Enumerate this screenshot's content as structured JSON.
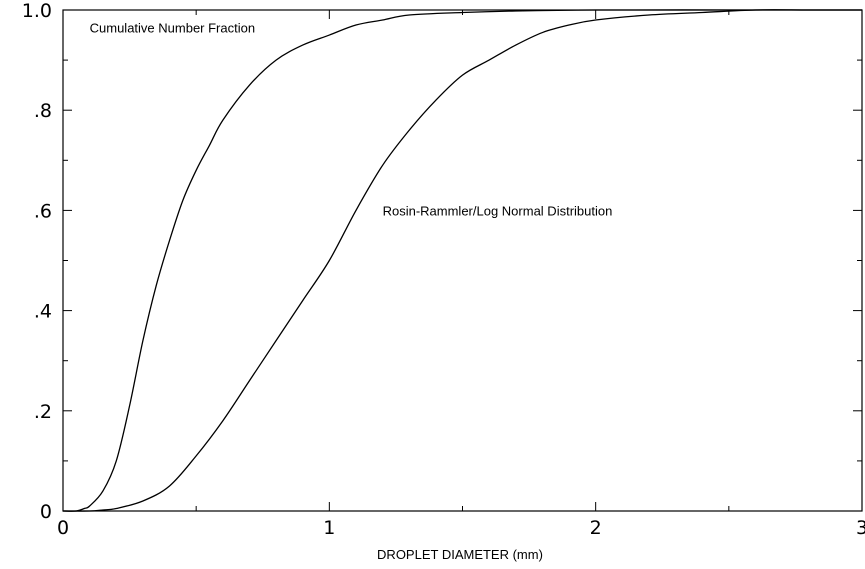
{
  "chart_data": {
    "type": "line",
    "title": "",
    "xlabel": "DROPLET DIAMETER (mm)",
    "ylabel": "",
    "xlim": [
      0,
      3
    ],
    "ylim": [
      0,
      1
    ],
    "grid": false,
    "x_ticks": [
      {
        "value": 0,
        "label": "0"
      },
      {
        "value": 1,
        "label": "1"
      },
      {
        "value": 2,
        "label": "2"
      },
      {
        "value": 3,
        "label": "3"
      }
    ],
    "y_ticks": [
      {
        "value": 0,
        "label": "0"
      },
      {
        "value": 0.2,
        "label": ".2"
      },
      {
        "value": 0.4,
        "label": ".4"
      },
      {
        "value": 0.6,
        "label": ".6"
      },
      {
        "value": 0.8,
        "label": ".8"
      },
      {
        "value": 1.0,
        "label": "1.0"
      }
    ],
    "annotations": [
      {
        "text": "Cumulative Number Fraction",
        "x": 0.1,
        "y": 0.955
      },
      {
        "text": "Rosin-Rammler/Log Normal Distribution",
        "x": 1.2,
        "y": 0.59
      }
    ],
    "series": [
      {
        "color": "#000000",
        "x": [
          0,
          0.05,
          0.08,
          0.1,
          0.15,
          0.2,
          0.25,
          0.3,
          0.35,
          0.4,
          0.45,
          0.5,
          0.55,
          0.6,
          0.7,
          0.8,
          0.9,
          1.0,
          1.1,
          1.2,
          1.3,
          1.5,
          1.7,
          2.0,
          2.5,
          3.0
        ],
        "y": [
          0,
          0.0,
          0.005,
          0.01,
          0.04,
          0.1,
          0.21,
          0.34,
          0.45,
          0.54,
          0.62,
          0.68,
          0.73,
          0.78,
          0.85,
          0.9,
          0.93,
          0.95,
          0.97,
          0.98,
          0.99,
          0.995,
          0.998,
          1.0,
          1.0,
          1.0
        ]
      },
      {
        "color": "#000000",
        "x": [
          0,
          0.1,
          0.15,
          0.2,
          0.3,
          0.4,
          0.5,
          0.6,
          0.7,
          0.8,
          0.9,
          1.0,
          1.1,
          1.2,
          1.3,
          1.4,
          1.5,
          1.6,
          1.7,
          1.8,
          1.9,
          2.0,
          2.2,
          2.4,
          2.6,
          2.8,
          3.0
        ],
        "y": [
          0,
          0.0,
          0.002,
          0.005,
          0.02,
          0.05,
          0.11,
          0.18,
          0.26,
          0.34,
          0.42,
          0.5,
          0.6,
          0.69,
          0.76,
          0.82,
          0.87,
          0.9,
          0.93,
          0.955,
          0.97,
          0.98,
          0.99,
          0.995,
          1.0,
          1.0,
          1.0
        ]
      }
    ]
  }
}
